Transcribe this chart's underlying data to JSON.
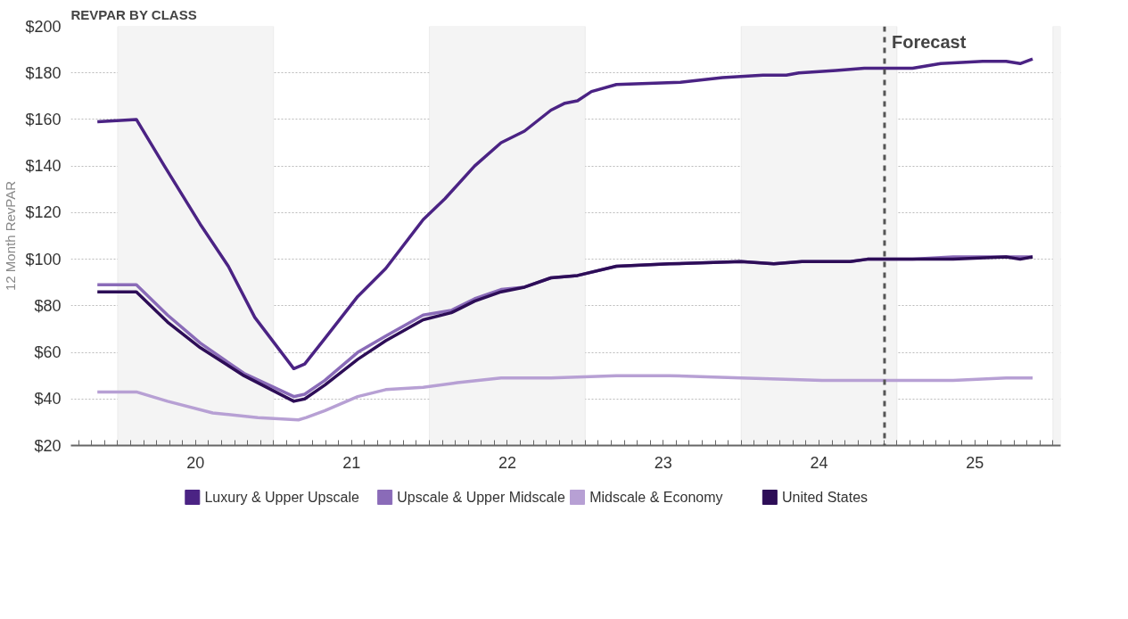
{
  "chart_data": {
    "type": "line",
    "title": "REVPAR BY CLASS",
    "ylabel": "12 Month RevPAR",
    "xlim": [
      19.2,
      25.55
    ],
    "ylim": [
      20,
      200
    ],
    "xticks": [
      20,
      21,
      22,
      23,
      24,
      25
    ],
    "yticks": [
      {
        "value": 20,
        "label": "$20"
      },
      {
        "value": 40,
        "label": "$40"
      },
      {
        "value": 60,
        "label": "$60"
      },
      {
        "value": 80,
        "label": "$80"
      },
      {
        "value": 100,
        "label": "$100"
      },
      {
        "value": 120,
        "label": "$120"
      },
      {
        "value": 140,
        "label": "$140"
      },
      {
        "value": 160,
        "label": "$160"
      },
      {
        "value": 180,
        "label": "$180"
      },
      {
        "value": 200,
        "label": "$200"
      }
    ],
    "grid": "y",
    "legend": "bottom",
    "line_style": "solid",
    "marker": "none",
    "bands": [
      {
        "axis": "x",
        "from": 19.5,
        "to": 20.5,
        "color": "#f4f4f4"
      },
      {
        "axis": "x",
        "from": 21.5,
        "to": 22.5,
        "color": "#f4f4f4"
      },
      {
        "axis": "x",
        "from": 23.5,
        "to": 24.5,
        "color": "#f4f4f4"
      },
      {
        "axis": "x",
        "from": 25.5,
        "to": 25.55,
        "color": "#f4f4f4"
      }
    ],
    "ref_lines": [
      {
        "axis": "x",
        "value": 24.42,
        "label": "Forecast",
        "color": "#555555",
        "line_style": "dashed"
      }
    ],
    "series": [
      {
        "name": "Luxury & Upper Upscale",
        "color": "#4b2384",
        "x": [
          19.37,
          19.62,
          19.8,
          20.03,
          20.21,
          20.38,
          20.63,
          20.7,
          20.83,
          21.04,
          21.22,
          21.46,
          21.6,
          21.79,
          21.96,
          22.11,
          22.28,
          22.37,
          22.45,
          22.54,
          22.7,
          23.11,
          23.38,
          23.64,
          23.79,
          23.87,
          24.11,
          24.29,
          24.42,
          24.6,
          24.78,
          25.05,
          25.2,
          25.29,
          25.37
        ],
        "values": [
          159,
          160,
          140,
          115,
          97,
          75,
          53,
          55,
          66,
          84,
          96,
          117,
          126,
          140,
          150,
          155,
          164,
          167,
          168,
          172,
          175,
          176,
          178,
          179,
          179,
          180,
          181,
          182,
          182,
          182,
          184,
          185,
          185,
          184,
          186
        ]
      },
      {
        "name": "Upscale & Upper Midscale",
        "color": "#8a6bb8",
        "x": [
          19.37,
          19.62,
          19.82,
          20.03,
          20.31,
          20.63,
          20.7,
          20.83,
          21.04,
          21.22,
          21.46,
          21.64,
          21.79,
          21.96,
          22.11,
          22.28,
          22.45,
          22.7,
          23.04,
          23.5,
          23.71,
          23.89,
          24.2,
          24.31,
          24.42,
          24.6,
          24.86,
          25.2,
          25.29,
          25.37
        ],
        "values": [
          89,
          89,
          76,
          64,
          51,
          41,
          42,
          48,
          60,
          67,
          76,
          78,
          83,
          87,
          88,
          92,
          93,
          97,
          98,
          99,
          98,
          99,
          99,
          100,
          100,
          100,
          101,
          101,
          101,
          101
        ]
      },
      {
        "name": "Midscale & Economy",
        "color": "#b7a0d4",
        "x": [
          19.37,
          19.62,
          19.82,
          20.11,
          20.4,
          20.66,
          20.71,
          20.83,
          21.04,
          21.22,
          21.46,
          21.68,
          21.96,
          22.11,
          22.28,
          22.7,
          23.04,
          23.5,
          24.02,
          24.21,
          24.42,
          24.86,
          25.2,
          25.37
        ],
        "values": [
          43,
          43,
          39,
          34,
          32,
          31,
          32,
          35,
          41,
          44,
          45,
          47,
          49,
          49,
          49,
          50,
          50,
          49,
          48,
          48,
          48,
          48,
          49,
          49
        ]
      },
      {
        "name": "United States",
        "color": "#2d0d57",
        "x": [
          19.37,
          19.62,
          19.82,
          20.03,
          20.31,
          20.63,
          20.7,
          20.83,
          21.04,
          21.22,
          21.46,
          21.64,
          21.79,
          21.96,
          22.11,
          22.28,
          22.45,
          22.7,
          23.04,
          23.5,
          23.71,
          23.89,
          24.2,
          24.31,
          24.42,
          24.6,
          24.86,
          25.2,
          25.29,
          25.37
        ],
        "values": [
          86,
          86,
          73,
          62,
          50,
          39,
          40,
          46,
          57,
          65,
          74,
          77,
          82,
          86,
          88,
          92,
          93,
          97,
          98,
          99,
          98,
          99,
          99,
          100,
          100,
          100,
          100,
          101,
          100,
          101
        ]
      }
    ]
  }
}
